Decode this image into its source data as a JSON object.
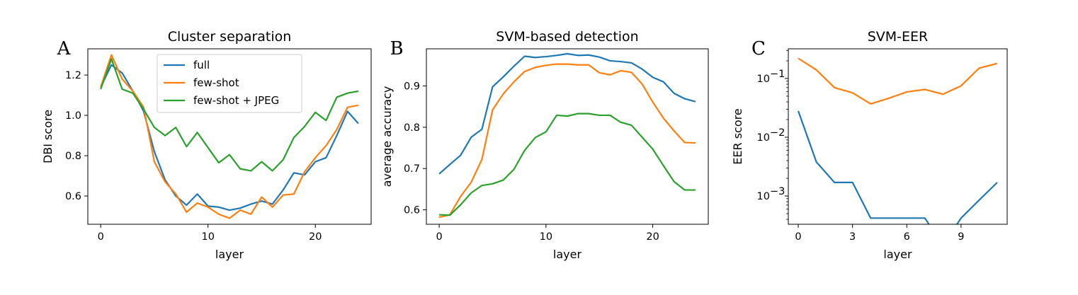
{
  "chart_data": [
    {
      "panel_label": "A",
      "type": "line",
      "title": "Cluster separation",
      "xlabel": "layer",
      "ylabel": "DBI score",
      "xlim": [
        -1.2,
        25.2
      ],
      "ylim": [
        0.46,
        1.33
      ],
      "xticks": [
        0,
        10,
        20
      ],
      "yticks": [
        0.6,
        0.8,
        1.0,
        1.2
      ],
      "ytick_labels": [
        "0.6",
        "0.8",
        "1.0",
        "1.2"
      ],
      "legend": {
        "placement": "top-center"
      },
      "series": [
        {
          "name": "full",
          "color": "#1f77b4",
          "x": [
            0,
            1,
            2,
            3,
            4,
            5,
            6,
            7,
            8,
            9,
            10,
            11,
            12,
            13,
            14,
            15,
            16,
            17,
            18,
            19,
            20,
            21,
            22,
            23,
            24
          ],
          "y": [
            1.14,
            1.25,
            1.21,
            1.12,
            1.02,
            0.82,
            0.68,
            0.6,
            0.555,
            0.61,
            0.55,
            0.545,
            0.53,
            0.54,
            0.56,
            0.575,
            0.56,
            0.63,
            0.715,
            0.705,
            0.77,
            0.79,
            0.9,
            1.02,
            0.96
          ]
        },
        {
          "name": "few-shot",
          "color": "#ff7f0e",
          "x": [
            0,
            1,
            2,
            3,
            4,
            5,
            6,
            7,
            8,
            9,
            10,
            11,
            12,
            13,
            14,
            15,
            16,
            17,
            18,
            19,
            20,
            21,
            22,
            23,
            24
          ],
          "y": [
            1.14,
            1.3,
            1.18,
            1.12,
            1.04,
            0.77,
            0.67,
            0.61,
            0.52,
            0.565,
            0.545,
            0.51,
            0.49,
            0.53,
            0.51,
            0.595,
            0.545,
            0.605,
            0.61,
            0.72,
            0.79,
            0.85,
            0.93,
            1.04,
            1.05
          ]
        },
        {
          "name": "few-shot + JPEG",
          "color": "#2ca02c",
          "x": [
            0,
            1,
            2,
            3,
            4,
            5,
            6,
            7,
            8,
            9,
            10,
            11,
            12,
            13,
            14,
            15,
            16,
            17,
            18,
            19,
            20,
            21,
            22,
            23,
            24
          ],
          "y": [
            1.13,
            1.28,
            1.13,
            1.11,
            1.03,
            0.94,
            0.9,
            0.94,
            0.845,
            0.915,
            0.84,
            0.765,
            0.805,
            0.735,
            0.725,
            0.77,
            0.725,
            0.78,
            0.89,
            0.945,
            1.015,
            0.975,
            1.09,
            1.11,
            1.12
          ]
        }
      ]
    },
    {
      "panel_label": "B",
      "type": "line",
      "title": "SVM-based detection",
      "xlabel": "layer",
      "ylabel": "average accuracy",
      "xlim": [
        -1.2,
        25.2
      ],
      "ylim": [
        0.565,
        0.99
      ],
      "xticks": [
        0,
        10,
        20
      ],
      "yticks": [
        0.6,
        0.7,
        0.8,
        0.9
      ],
      "ytick_labels": [
        "0.6",
        "0.7",
        "0.8",
        "0.9"
      ],
      "series": [
        {
          "color": "#1f77b4",
          "x": [
            0,
            1,
            2,
            3,
            4,
            5,
            6,
            7,
            8,
            9,
            10,
            11,
            12,
            13,
            14,
            15,
            16,
            17,
            18,
            19,
            20,
            21,
            22,
            23,
            24
          ],
          "y": [
            0.687,
            0.71,
            0.732,
            0.776,
            0.795,
            0.898,
            0.922,
            0.948,
            0.972,
            0.969,
            0.971,
            0.974,
            0.978,
            0.974,
            0.975,
            0.97,
            0.961,
            0.959,
            0.956,
            0.941,
            0.921,
            0.91,
            0.882,
            0.869,
            0.862
          ]
        },
        {
          "color": "#ff7f0e",
          "x": [
            0,
            1,
            2,
            3,
            4,
            5,
            6,
            7,
            8,
            9,
            10,
            11,
            12,
            13,
            14,
            15,
            16,
            17,
            18,
            19,
            20,
            21,
            22,
            23,
            24
          ],
          "y": [
            0.582,
            0.588,
            0.632,
            0.667,
            0.722,
            0.842,
            0.881,
            0.91,
            0.935,
            0.945,
            0.95,
            0.953,
            0.953,
            0.951,
            0.951,
            0.932,
            0.927,
            0.937,
            0.933,
            0.905,
            0.861,
            0.822,
            0.791,
            0.763,
            0.762
          ]
        },
        {
          "color": "#2ca02c",
          "x": [
            0,
            1,
            2,
            3,
            4,
            5,
            6,
            7,
            8,
            9,
            10,
            11,
            12,
            13,
            14,
            15,
            16,
            17,
            18,
            19,
            20,
            21,
            22,
            23,
            24
          ],
          "y": [
            0.588,
            0.587,
            0.612,
            0.641,
            0.659,
            0.663,
            0.672,
            0.698,
            0.744,
            0.775,
            0.789,
            0.829,
            0.827,
            0.833,
            0.833,
            0.829,
            0.829,
            0.812,
            0.805,
            0.776,
            0.747,
            0.707,
            0.668,
            0.648,
            0.648
          ]
        }
      ]
    },
    {
      "panel_label": "C",
      "type": "line",
      "title": "SVM-EER",
      "xlabel": "layer",
      "ylabel": "EER score",
      "yscale": "log",
      "xlim": [
        -0.55,
        11.55
      ],
      "ylim": [
        0.00033,
        0.32
      ],
      "xticks": [
        0,
        3,
        6,
        9
      ],
      "yticks": [
        0.001,
        0.01,
        0.1
      ],
      "ytick_labels": [
        "10",
        "10",
        "10"
      ],
      "ytick_exponents": [
        "−3",
        "−2",
        "−1"
      ],
      "series": [
        {
          "color": "#1f77b4",
          "x": [
            0,
            1,
            2,
            3,
            4,
            5,
            6,
            7,
            8,
            9,
            10,
            11
          ],
          "y": [
            0.028,
            0.0038,
            0.0017,
            0.0017,
            0.00042,
            0.00042,
            0.00042,
            0.00042,
            0,
            0.00042,
            0.00085,
            0.0017
          ]
        },
        {
          "color": "#ff7f0e",
          "x": [
            0,
            1,
            2,
            3,
            4,
            5,
            6,
            7,
            8,
            9,
            10,
            11
          ],
          "y": [
            0.22,
            0.14,
            0.07,
            0.057,
            0.037,
            0.046,
            0.059,
            0.065,
            0.054,
            0.075,
            0.15,
            0.18
          ]
        }
      ]
    }
  ]
}
